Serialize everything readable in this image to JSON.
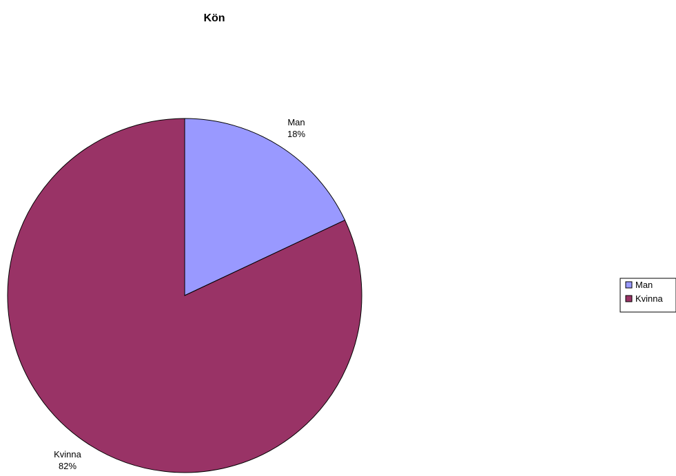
{
  "chart_data": {
    "type": "pie",
    "title": "Kön",
    "categories": [
      "Man",
      "Kvinna"
    ],
    "values": [
      18,
      82
    ],
    "labels": [
      "18%",
      "82%"
    ],
    "colors": [
      "#9999ff",
      "#993366"
    ],
    "legend": {
      "position": "right",
      "entries": [
        "Man",
        "Kvinna"
      ]
    }
  }
}
